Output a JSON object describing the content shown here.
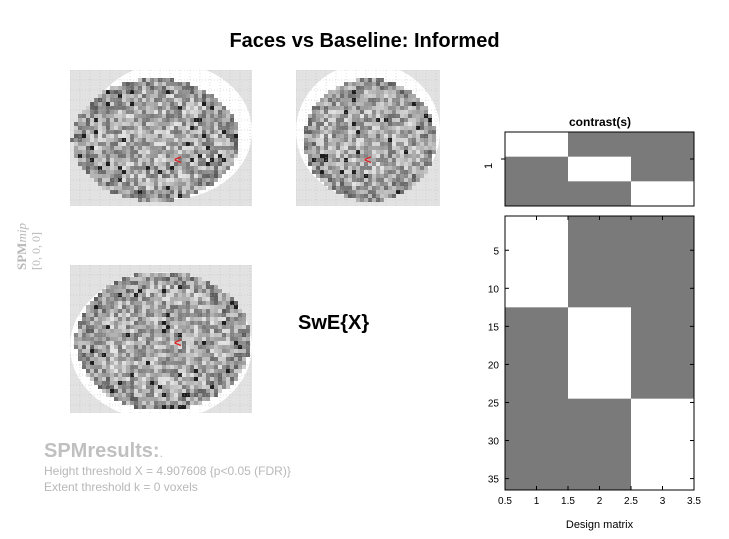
{
  "figure": {
    "title": "Faces vs Baseline: Informed",
    "stat_label": "SwE{X}"
  },
  "mip": {
    "label_main": "SPM",
    "label_sub": "mip",
    "coords": "[0, 0, 0]",
    "marker_glyph": "<",
    "marker_color": "#d62828",
    "panels": [
      "sagittal",
      "coronal",
      "axial"
    ]
  },
  "results": {
    "title": "SPMresults:",
    "title_suffix": ".",
    "height_threshold": "Height threshold X = 4.907608  {p<0.05 (FDR)}",
    "extent_threshold": "Extent threshold k = 0 voxels"
  },
  "contrast": {
    "title": "contrast(s)",
    "row_label": "1",
    "weights_fill_rows": [
      [
        "white",
        "gray",
        "gray"
      ],
      [
        "gray",
        "white",
        "gray"
      ],
      [
        "gray",
        "gray",
        "white"
      ]
    ]
  },
  "design_matrix": {
    "xlabel": "Design matrix",
    "x_ticks": [
      "0.5",
      "1",
      "1.5",
      "2",
      "2.5",
      "3",
      "3.5"
    ],
    "y_ticks": [
      "5",
      "10",
      "15",
      "20",
      "25",
      "30",
      "35"
    ],
    "gray_color": "#7a7a7a",
    "blocks": [
      {
        "col": 1,
        "from": 0.5,
        "to": 12.5,
        "fill": "white"
      },
      {
        "col": 1,
        "from": 12.5,
        "to": 36.5,
        "fill": "gray"
      },
      {
        "col": 2,
        "from": 0.5,
        "to": 12.5,
        "fill": "gray"
      },
      {
        "col": 2,
        "from": 12.5,
        "to": 24.5,
        "fill": "white"
      },
      {
        "col": 2,
        "from": 24.5,
        "to": 36.5,
        "fill": "gray"
      },
      {
        "col": 3,
        "from": 0.5,
        "to": 24.5,
        "fill": "gray"
      },
      {
        "col": 3,
        "from": 24.5,
        "to": 36.5,
        "fill": "white"
      }
    ],
    "xlim": [
      0.5,
      3.5
    ],
    "ylim": [
      0.5,
      36.5
    ]
  }
}
